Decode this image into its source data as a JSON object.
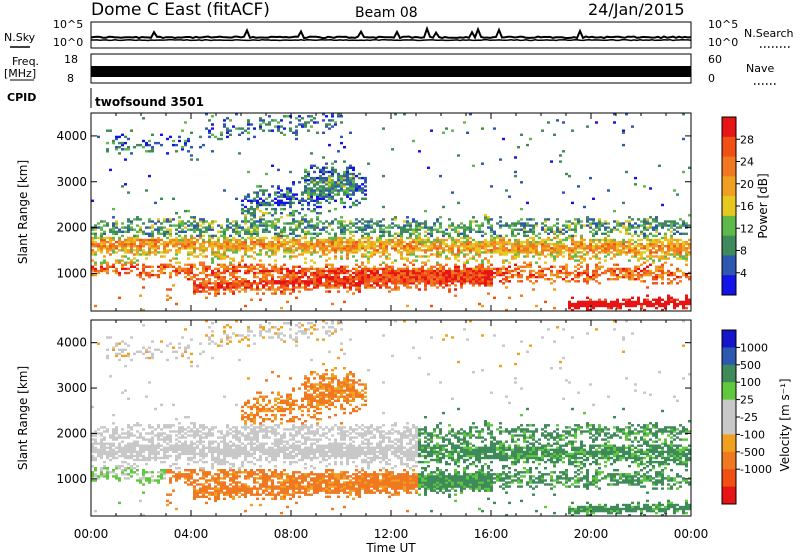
{
  "header": {
    "site": "Dome C East (fitACF)",
    "beam": "Beam 08",
    "date": "24/Jan/2015"
  },
  "strips": {
    "nsky_label": "N.Sky",
    "nsky_ticks": [
      "10^5",
      "10^0"
    ],
    "nsearch_label": "N.Search",
    "nsearch_ticks": [
      "10^5",
      "10^0"
    ],
    "freq_label": "Freq.",
    "freq_unit": "[MHz]",
    "freq_ticks": [
      "18",
      "8"
    ],
    "nave_label": "Nave",
    "nave_ticks": [
      "60",
      "0"
    ],
    "cpid_label": "CPID",
    "cpid_value": "twofsound 3501"
  },
  "colors": {
    "power": [
      "#1414e6",
      "#2e57b0",
      "#3e8a5a",
      "#5fb84a",
      "#e6c81e",
      "#f0a020",
      "#f07820",
      "#f05014",
      "#e61414"
    ],
    "velocity": [
      "#e61414",
      "#f05014",
      "#f07820",
      "#f0a020",
      "#c8c8c8",
      "#c8c8c8",
      "#5fc83c",
      "#3e8a5a",
      "#2e57b0",
      "#1414c8"
    ]
  },
  "chart_data": [
    {
      "type": "heatmap",
      "name": "power-panel",
      "ylabel": "Slant Range [km]",
      "xlabel": "",
      "x_ticks": [
        "00:00",
        "04:00",
        "08:00",
        "12:00",
        "16:00",
        "20:00",
        "00:00"
      ],
      "x_range_hours": [
        0,
        24
      ],
      "y_ticks": [
        1000,
        2000,
        3000,
        4000
      ],
      "ylim": [
        180,
        4500
      ],
      "colorbar_title": "Power [dB]",
      "colorbar_ticks": [
        "4",
        "8",
        "12",
        "16",
        "20",
        "24",
        "28"
      ],
      "colorbar_range": [
        0,
        32
      ]
    },
    {
      "type": "heatmap",
      "name": "velocity-panel",
      "ylabel": "Slant Range [km]",
      "xlabel": "Time UT",
      "x_ticks": [
        "00:00",
        "04:00",
        "08:00",
        "12:00",
        "16:00",
        "20:00",
        "00:00"
      ],
      "x_range_hours": [
        0,
        24
      ],
      "y_ticks": [
        1000,
        2000,
        3000,
        4000
      ],
      "ylim": [
        180,
        4500
      ],
      "colorbar_title": "Velocity [m s⁻¹]",
      "colorbar_ticks": [
        "1000",
        "500",
        "100",
        "25",
        "-25",
        "-100",
        "-500",
        "-1000"
      ],
      "colorbar_range": [
        -1000,
        1000
      ]
    }
  ]
}
